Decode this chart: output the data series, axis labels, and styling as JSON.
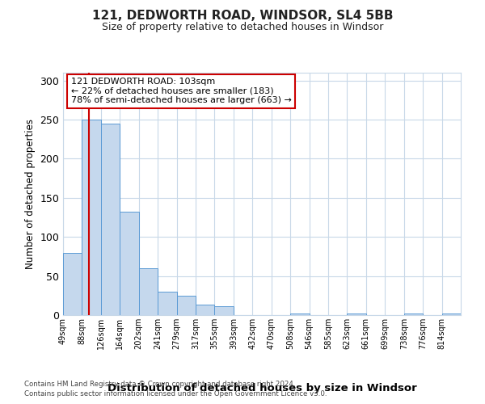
{
  "title": "121, DEDWORTH ROAD, WINDSOR, SL4 5BB",
  "subtitle": "Size of property relative to detached houses in Windsor",
  "xlabel": "Distribution of detached houses by size in Windsor",
  "ylabel": "Number of detached properties",
  "bin_labels": [
    "49sqm",
    "88sqm",
    "126sqm",
    "164sqm",
    "202sqm",
    "241sqm",
    "279sqm",
    "317sqm",
    "355sqm",
    "393sqm",
    "432sqm",
    "470sqm",
    "508sqm",
    "546sqm",
    "585sqm",
    "623sqm",
    "661sqm",
    "699sqm",
    "738sqm",
    "776sqm",
    "814sqm"
  ],
  "bar_heights": [
    80,
    250,
    245,
    132,
    60,
    30,
    25,
    13,
    11,
    0,
    0,
    0,
    2,
    0,
    0,
    2,
    0,
    0,
    2,
    0,
    2
  ],
  "bar_color": "#c5d8ed",
  "bar_edge_color": "#5b9bd5",
  "vline_x": 1.38,
  "vline_color": "#cc0000",
  "annotation_title": "121 DEDWORTH ROAD: 103sqm",
  "annotation_line1": "← 22% of detached houses are smaller (183)",
  "annotation_line2": "78% of semi-detached houses are larger (663) →",
  "annotation_box_facecolor": "#ffffff",
  "annotation_box_edgecolor": "#cc0000",
  "ylim": [
    0,
    310
  ],
  "yticks": [
    0,
    50,
    100,
    150,
    200,
    250,
    300
  ],
  "footer_line1": "Contains HM Land Registry data © Crown copyright and database right 2024.",
  "footer_line2": "Contains public sector information licensed under the Open Government Licence v3.0.",
  "background_color": "#ffffff",
  "grid_color": "#c8d8e8"
}
